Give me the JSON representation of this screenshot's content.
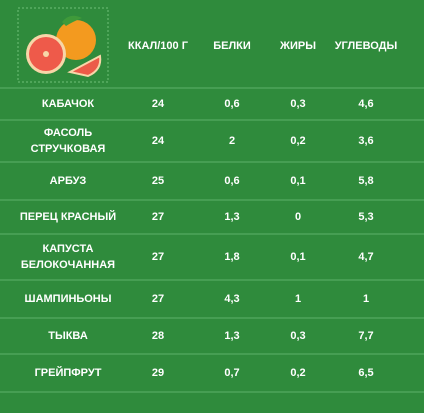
{
  "table": {
    "header": [
      "ККАЛ/100 Г",
      "БЕЛКИ",
      "ЖИРЫ",
      "УГЛЕВОДЫ"
    ],
    "rows": [
      {
        "name": [
          "КАБАЧОК"
        ],
        "cells": [
          "24",
          "0,6",
          "0,3",
          "4,6"
        ]
      },
      {
        "name": [
          "ФАСОЛЬ",
          "СТРУЧКОВАЯ"
        ],
        "cells": [
          "24",
          "2",
          "0,2",
          "3,6"
        ]
      },
      {
        "name": [
          "АРБУЗ"
        ],
        "cells": [
          "25",
          "0,6",
          "0,1",
          "5,8"
        ]
      },
      {
        "name": [
          "ПЕРЕЦ КРАСНЫЙ"
        ],
        "cells": [
          "27",
          "1,3",
          "0",
          "5,3"
        ]
      },
      {
        "name": [
          "КАПУСТА",
          "БЕЛОКОЧАННАЯ"
        ],
        "cells": [
          "27",
          "1,8",
          "0,1",
          "4,7"
        ]
      },
      {
        "name": [
          "ШАМПИНЬОНЫ"
        ],
        "cells": [
          "27",
          "4,3",
          "1",
          "1"
        ]
      },
      {
        "name": [
          "ТЫКВА"
        ],
        "cells": [
          "28",
          "1,3",
          "0,3",
          "7,7"
        ]
      },
      {
        "name": [
          "ГРЕЙПФРУТ"
        ],
        "cells": [
          "29",
          "0,7",
          "0,2",
          "6,5"
        ]
      }
    ]
  }
}
